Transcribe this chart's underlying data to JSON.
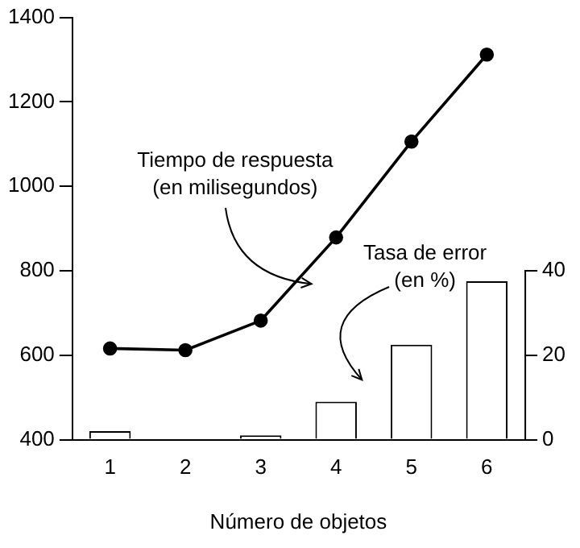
{
  "chart_data": {
    "type": "bar",
    "xlabel": "Número de objetos",
    "categories": [
      "1",
      "2",
      "3",
      "4",
      "5",
      "6"
    ],
    "series": [
      {
        "type": "line",
        "color": "#000000",
        "values": [
          616,
          612,
          682,
          879,
          1106,
          1312
        ]
      },
      {
        "axis": "y2",
        "color": "#ffffff",
        "values": [
          2,
          0,
          1,
          9,
          22.5,
          37.5
        ]
      }
    ],
    "ylim": [
      400,
      1400
    ],
    "yticks": [
      400,
      600,
      800,
      1000,
      1200,
      1400
    ],
    "y2lim": [
      0,
      100
    ],
    "y2ticks": [
      0,
      20,
      40
    ],
    "annotations": [
      "Tiempo de respuesta\n(en milisegundos)",
      "Tasa de error\n(en %)"
    ],
    "marker": "circle",
    "line_style": "solid",
    "grid": false,
    "legend": false
  }
}
